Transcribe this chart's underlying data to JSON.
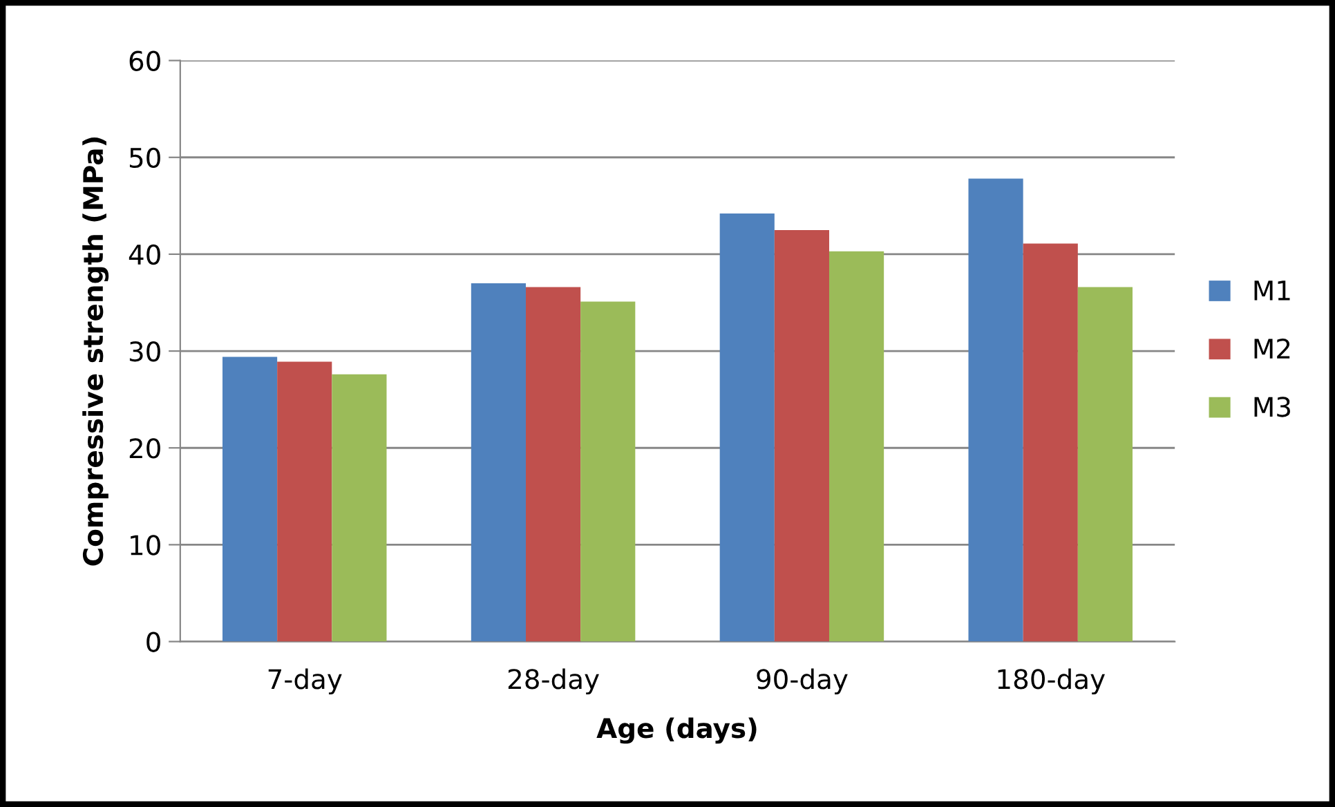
{
  "chart_data": {
    "type": "bar",
    "xlabel": "Age (days)",
    "ylabel": "Compressive strength (MPa)",
    "categories": [
      "7-day",
      "28-day",
      "90-day",
      "180-day"
    ],
    "series": [
      {
        "name": "M1",
        "color": "#4f81bd",
        "values": [
          29.4,
          37.0,
          44.2,
          47.8
        ]
      },
      {
        "name": "M2",
        "color": "#c0504d",
        "values": [
          28.9,
          36.6,
          42.5,
          41.1
        ]
      },
      {
        "name": "M3",
        "color": "#9bbb59",
        "values": [
          27.6,
          35.1,
          40.3,
          36.6
        ]
      }
    ],
    "ylim": [
      0,
      60
    ],
    "yticks": [
      0,
      10,
      20,
      30,
      40,
      50,
      60
    ],
    "grid": "y",
    "legend": "right"
  }
}
